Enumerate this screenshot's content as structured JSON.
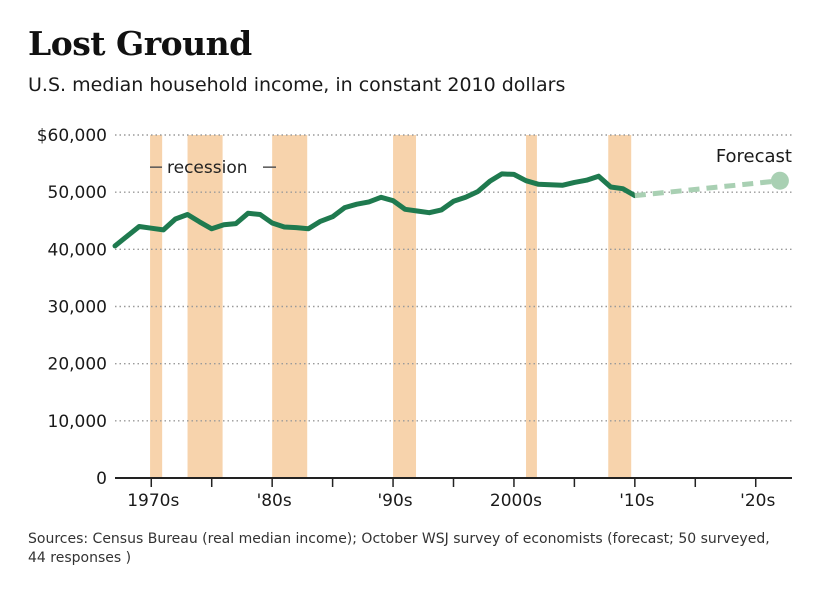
{
  "chart_data": {
    "type": "line",
    "title": "Lost Ground",
    "subtitle": "U.S. median household income, in constant 2010 dollars",
    "source": "Sources: Census Bureau (real median income); October WSJ survey of economists (forecast; 50 surveyed, 44 responses )",
    "xlabel": "",
    "ylabel": "",
    "xlim": [
      1967,
      2023
    ],
    "ylim": [
      0,
      60000
    ],
    "grid": "horizontal dotted",
    "y_ticks": [
      {
        "value": 60000,
        "label": "$60,000"
      },
      {
        "value": 50000,
        "label": "50,000"
      },
      {
        "value": 40000,
        "label": "40,000"
      },
      {
        "value": 30000,
        "label": "30,000"
      },
      {
        "value": 20000,
        "label": "20,000"
      },
      {
        "value": 10000,
        "label": "10,000"
      },
      {
        "value": 0,
        "label": "0"
      }
    ],
    "x_ticks": [
      {
        "value": 1970,
        "label": "1970s"
      },
      {
        "value": 1980,
        "label": "'80s"
      },
      {
        "value": 1990,
        "label": "'90s"
      },
      {
        "value": 2000,
        "label": "2000s"
      },
      {
        "value": 2010,
        "label": "'10s"
      },
      {
        "value": 2020,
        "label": "'20s"
      }
    ],
    "recessions": [
      {
        "start": 1969.9,
        "end": 1970.9
      },
      {
        "start": 1973.0,
        "end": 1975.9
      },
      {
        "start": 1980.0,
        "end": 1982.9
      },
      {
        "start": 1990.0,
        "end": 1991.9
      },
      {
        "start": 2001.0,
        "end": 2001.9
      },
      {
        "start": 2007.8,
        "end": 2009.7
      }
    ],
    "recession_label": "recession",
    "forecast_label": "Forecast",
    "colors": {
      "actual": "#1f7a4f",
      "forecast": "#a9d0b3",
      "recession": "#f7d3ac",
      "grid": "#9a9a9a",
      "axis": "#222222"
    },
    "series": [
      {
        "values": [
          [
            1967,
            40600
          ],
          [
            1968,
            42300
          ],
          [
            1969,
            44000
          ],
          [
            1970,
            43700
          ],
          [
            1971,
            43400
          ],
          [
            1972,
            45300
          ],
          [
            1973,
            46100
          ],
          [
            1974,
            44800
          ],
          [
            1975,
            43600
          ],
          [
            1976,
            44300
          ],
          [
            1977,
            44500
          ],
          [
            1978,
            46300
          ],
          [
            1979,
            46100
          ],
          [
            1980,
            44600
          ],
          [
            1981,
            43900
          ],
          [
            1982,
            43800
          ],
          [
            1983,
            43600
          ],
          [
            1984,
            44900
          ],
          [
            1985,
            45700
          ],
          [
            1986,
            47300
          ],
          [
            1987,
            47900
          ],
          [
            1988,
            48300
          ],
          [
            1989,
            49100
          ],
          [
            1990,
            48500
          ],
          [
            1991,
            47000
          ],
          [
            1992,
            46700
          ],
          [
            1993,
            46400
          ],
          [
            1994,
            46900
          ],
          [
            1995,
            48400
          ],
          [
            1996,
            49100
          ],
          [
            1997,
            50100
          ],
          [
            1998,
            51900
          ],
          [
            1999,
            53200
          ],
          [
            2000,
            53100
          ],
          [
            2001,
            52000
          ],
          [
            2002,
            51400
          ],
          [
            2003,
            51300
          ],
          [
            2004,
            51200
          ],
          [
            2005,
            51700
          ],
          [
            2006,
            52100
          ],
          [
            2007,
            52800
          ],
          [
            2008,
            50900
          ],
          [
            2009,
            50600
          ],
          [
            2010,
            49400
          ]
        ]
      },
      {
        "values": [
          [
            2010,
            49400
          ],
          [
            2022,
            52000
          ]
        ]
      }
    ]
  }
}
